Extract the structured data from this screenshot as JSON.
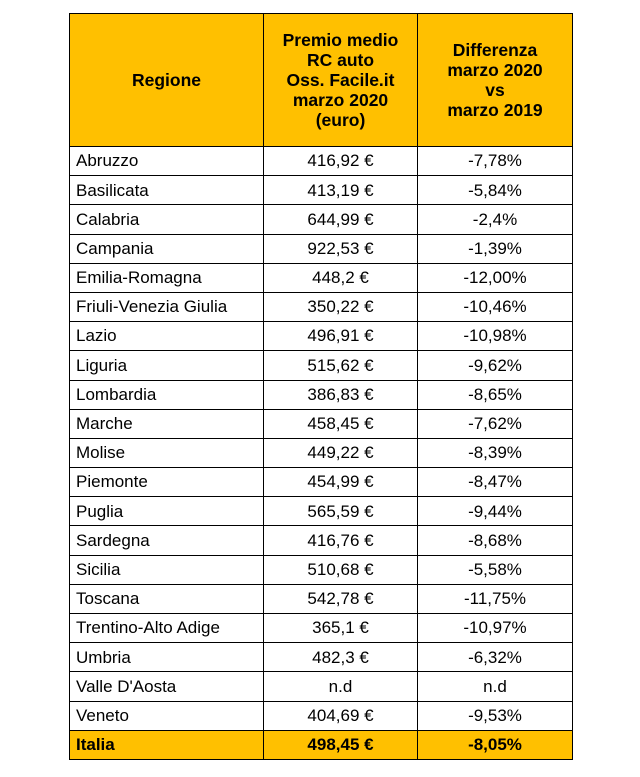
{
  "table": {
    "headers": {
      "region": "Regione",
      "premium": [
        "Premio medio",
        "RC auto",
        "Oss. Facile.it",
        "marzo 2020",
        "(euro)"
      ],
      "difference": [
        "Differenza",
        "marzo 2020",
        "vs",
        "marzo 2019"
      ]
    },
    "rows": [
      {
        "region": "Abruzzo",
        "premium": "416,92 €",
        "difference": "-7,78%"
      },
      {
        "region": "Basilicata",
        "premium": "413,19 €",
        "difference": "-5,84%"
      },
      {
        "region": "Calabria",
        "premium": "644,99 €",
        "difference": "-2,4%"
      },
      {
        "region": "Campania",
        "premium": "922,53 €",
        "difference": "-1,39%"
      },
      {
        "region": "Emilia-Romagna",
        "premium": "448,2 €",
        "difference": "-12,00%"
      },
      {
        "region": "Friuli-Venezia Giulia",
        "premium": "350,22 €",
        "difference": "-10,46%"
      },
      {
        "region": "Lazio",
        "premium": "496,91 €",
        "difference": "-10,98%"
      },
      {
        "region": "Liguria",
        "premium": "515,62 €",
        "difference": "-9,62%"
      },
      {
        "region": "Lombardia",
        "premium": "386,83 €",
        "difference": "-8,65%"
      },
      {
        "region": "Marche",
        "premium": "458,45 €",
        "difference": "-7,62%"
      },
      {
        "region": "Molise",
        "premium": "449,22 €",
        "difference": "-8,39%"
      },
      {
        "region": "Piemonte",
        "premium": "454,99 €",
        "difference": "-8,47%"
      },
      {
        "region": "Puglia",
        "premium": "565,59 €",
        "difference": "-9,44%"
      },
      {
        "region": "Sardegna",
        "premium": "416,76 €",
        "difference": "-8,68%"
      },
      {
        "region": "Sicilia",
        "premium": "510,68 €",
        "difference": "-5,58%"
      },
      {
        "region": "Toscana",
        "premium": "542,78 €",
        "difference": "-11,75%"
      },
      {
        "region": "Trentino-Alto Adige",
        "premium": "365,1 €",
        "difference": "-10,97%"
      },
      {
        "region": "Umbria",
        "premium": "482,3 €",
        "difference": "-6,32%"
      },
      {
        "region": "Valle D'Aosta",
        "premium": "n.d",
        "difference": "n.d"
      },
      {
        "region": "Veneto",
        "premium": "404,69 €",
        "difference": "-9,53%"
      }
    ],
    "total": {
      "region": "Italia",
      "premium": "498,45 €",
      "difference": "-8,05%"
    }
  },
  "colors": {
    "header_background": "#ffc000",
    "border": "#000000"
  }
}
